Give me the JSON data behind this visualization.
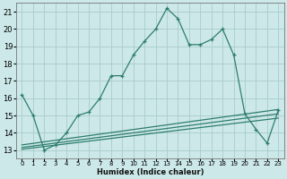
{
  "xlabel": "Humidex (Indice chaleur)",
  "x_labels": [
    "0",
    "1",
    "2",
    "3",
    "4",
    "5",
    "6",
    "7",
    "8",
    "9",
    "10",
    "11",
    "12",
    "13",
    "14",
    "15",
    "16",
    "17",
    "18",
    "19",
    "20",
    "21",
    "22",
    "23"
  ],
  "ylim": [
    12.5,
    21.5
  ],
  "xlim": [
    -0.5,
    23.5
  ],
  "yticks": [
    13,
    14,
    15,
    16,
    17,
    18,
    19,
    20,
    21
  ],
  "bg_color": "#cce8e8",
  "grid_color": "#aacccc",
  "line_color": "#2e7d6e",
  "series": {
    "main": {
      "x": [
        0,
        1,
        2,
        3,
        4,
        5,
        6,
        7,
        8,
        9,
        10,
        11,
        12,
        13,
        14,
        15,
        16,
        17,
        18,
        19,
        20,
        21,
        22,
        23
      ],
      "y": [
        16.2,
        15.0,
        13.0,
        13.3,
        14.0,
        15.0,
        15.2,
        16.0,
        17.3,
        17.3,
        18.5,
        19.3,
        20.0,
        21.2,
        20.6,
        19.1,
        19.1,
        19.4,
        20.0,
        18.5,
        15.1,
        14.2,
        13.4,
        15.3
      ]
    },
    "line2": {
      "x": [
        0,
        23
      ],
      "y": [
        13.3,
        15.35
      ]
    },
    "line3": {
      "x": [
        0,
        23
      ],
      "y": [
        13.15,
        15.1
      ]
    },
    "line4": {
      "x": [
        0,
        23
      ],
      "y": [
        13.05,
        14.85
      ]
    }
  }
}
